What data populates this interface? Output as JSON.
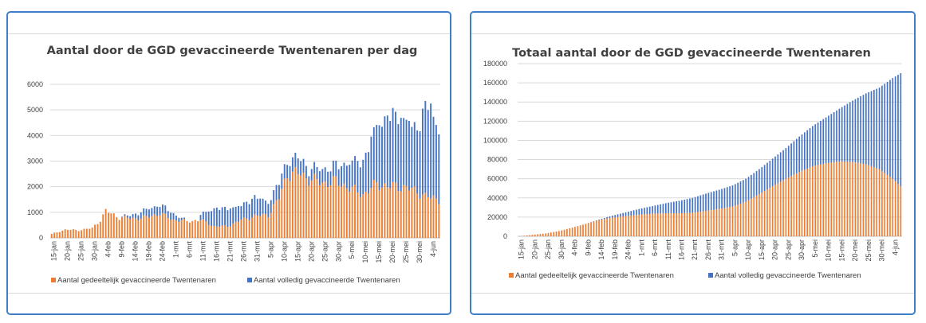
{
  "colors": {
    "partial": "#ed7d31",
    "full": "#4472c4",
    "grid": "#d9d9d9",
    "border": "#3f7fc9"
  },
  "chart_data": [
    {
      "type": "bar",
      "title": "Aantal door de GGD gevaccineerde Twentenaren per dag",
      "xlabel": "",
      "ylabel": "",
      "stacked": true,
      "ylim": [
        0,
        6000
      ],
      "yticks": [
        "0",
        "1000",
        "2000",
        "3000",
        "4000",
        "5000",
        "6000"
      ],
      "xtick_labels": [
        "15-jan",
        "20-jan",
        "25-jan",
        "30-jan",
        "4-feb",
        "9-feb",
        "14-feb",
        "19-feb",
        "24-feb",
        "1-mrt",
        "6-mrt",
        "11-mrt",
        "16-mrt",
        "21-mrt",
        "26-mrt",
        "31-mrt",
        "5-apr",
        "10-apr",
        "15-apr",
        "20-apr",
        "25-apr",
        "30-apr",
        "5-mei",
        "10-mei",
        "15-mei",
        "20-mei",
        "25-mei",
        "30-mei",
        "4-jun"
      ],
      "legend_position": "bottom",
      "series": [
        {
          "name": "Aantal gedeeltelijk gevaccineerde Twentenaren",
          "anchors": [
            [
              0,
              150
            ],
            [
              5,
              320
            ],
            [
              10,
              300
            ],
            [
              15,
              380
            ],
            [
              18,
              700
            ],
            [
              20,
              1050
            ],
            [
              25,
              800
            ],
            [
              30,
              750
            ],
            [
              35,
              800
            ],
            [
              40,
              950
            ],
            [
              45,
              700
            ],
            [
              50,
              650
            ],
            [
              55,
              700
            ],
            [
              60,
              450
            ],
            [
              65,
              450
            ],
            [
              70,
              700
            ],
            [
              75,
              850
            ],
            [
              80,
              900
            ],
            [
              84,
              1550
            ],
            [
              87,
              2500
            ],
            [
              92,
              2500
            ],
            [
              95,
              2300
            ],
            [
              100,
              2150
            ],
            [
              105,
              2200
            ],
            [
              110,
              1950
            ],
            [
              115,
              1700
            ],
            [
              120,
              2100
            ],
            [
              125,
              2000
            ],
            [
              130,
              2000
            ],
            [
              135,
              1800
            ],
            [
              140,
              1550
            ],
            [
              143,
              1500
            ]
          ]
        },
        {
          "name": "Aantal volledig gevaccineerde Twentenaren",
          "anchors": [
            [
              0,
              0
            ],
            [
              24,
              0
            ],
            [
              25,
              0
            ],
            [
              30,
              150
            ],
            [
              35,
              300
            ],
            [
              40,
              350
            ],
            [
              45,
              250
            ],
            [
              50,
              0
            ],
            [
              54,
              0
            ],
            [
              55,
              200
            ],
            [
              60,
              700
            ],
            [
              65,
              700
            ],
            [
              70,
              550
            ],
            [
              75,
              750
            ],
            [
              80,
              500
            ],
            [
              84,
              600
            ],
            [
              87,
              550
            ],
            [
              92,
              600
            ],
            [
              95,
              400
            ],
            [
              100,
              550
            ],
            [
              105,
              600
            ],
            [
              110,
              1000
            ],
            [
              115,
              1300
            ],
            [
              120,
              2300
            ],
            [
              125,
              2800
            ],
            [
              130,
              2700
            ],
            [
              135,
              2400
            ],
            [
              138,
              3600
            ],
            [
              140,
              3500
            ],
            [
              143,
              2600
            ]
          ]
        }
      ]
    },
    {
      "type": "bar",
      "title": "Totaal aantal door de GGD gevaccineerde Twentenaren",
      "xlabel": "",
      "ylabel": "",
      "stacked": true,
      "ylim": [
        0,
        180000
      ],
      "yticks": [
        "0",
        "20000",
        "40000",
        "60000",
        "80000",
        "100000",
        "120000",
        "140000",
        "160000",
        "180000"
      ],
      "xtick_labels": [
        "15-jan",
        "20-jan",
        "25-jan",
        "30-jan",
        "4-feb",
        "9-feb",
        "14-feb",
        "19-feb",
        "24-feb",
        "1-mrt",
        "6-mrt",
        "11-mrt",
        "16-mrt",
        "21-mrt",
        "26-mrt",
        "31-mrt",
        "5-apr",
        "10-apr",
        "15-apr",
        "20-apr",
        "25-apr",
        "30-apr",
        "5-mei",
        "10-mei",
        "15-mei",
        "20-mei",
        "25-mei",
        "30-mei",
        "4-jun"
      ],
      "legend_position": "bottom",
      "series": [
        {
          "name": "Aantal gedeeltelijk gevaccineerde Twentenaren",
          "anchors": [
            [
              0,
              0
            ],
            [
              5,
              1500
            ],
            [
              10,
              3000
            ],
            [
              15,
              5500
            ],
            [
              20,
              9000
            ],
            [
              25,
              13000
            ],
            [
              30,
              17000
            ],
            [
              35,
              19500
            ],
            [
              40,
              21000
            ],
            [
              45,
              22500
            ],
            [
              50,
              23500
            ],
            [
              55,
              24000
            ],
            [
              60,
              24000
            ],
            [
              65,
              24500
            ],
            [
              70,
              26500
            ],
            [
              75,
              28500
            ],
            [
              80,
              31000
            ],
            [
              85,
              36000
            ],
            [
              90,
              44000
            ],
            [
              95,
              52000
            ],
            [
              100,
              60000
            ],
            [
              105,
              67000
            ],
            [
              110,
              73000
            ],
            [
              115,
              76000
            ],
            [
              120,
              78000
            ],
            [
              125,
              77500
            ],
            [
              130,
              75000
            ],
            [
              135,
              70000
            ],
            [
              140,
              60000
            ],
            [
              143,
              52000
            ]
          ]
        },
        {
          "name": "Aantal volledig gevaccineerde Twentenaren",
          "anchors": [
            [
              0,
              0
            ],
            [
              25,
              0
            ],
            [
              30,
              500
            ],
            [
              35,
              2000
            ],
            [
              40,
              4000
            ],
            [
              45,
              6000
            ],
            [
              50,
              8000
            ],
            [
              55,
              10500
            ],
            [
              60,
              13000
            ],
            [
              65,
              15500
            ],
            [
              70,
              18000
            ],
            [
              75,
              20000
            ],
            [
              80,
              22000
            ],
            [
              85,
              24000
            ],
            [
              90,
              26000
            ],
            [
              95,
              29000
            ],
            [
              100,
              32000
            ],
            [
              105,
              37000
            ],
            [
              110,
              42000
            ],
            [
              115,
              48000
            ],
            [
              120,
              55000
            ],
            [
              125,
              64000
            ],
            [
              130,
              74000
            ],
            [
              135,
              85000
            ],
            [
              140,
              105000
            ],
            [
              143,
              118000
            ]
          ]
        }
      ]
    }
  ]
}
